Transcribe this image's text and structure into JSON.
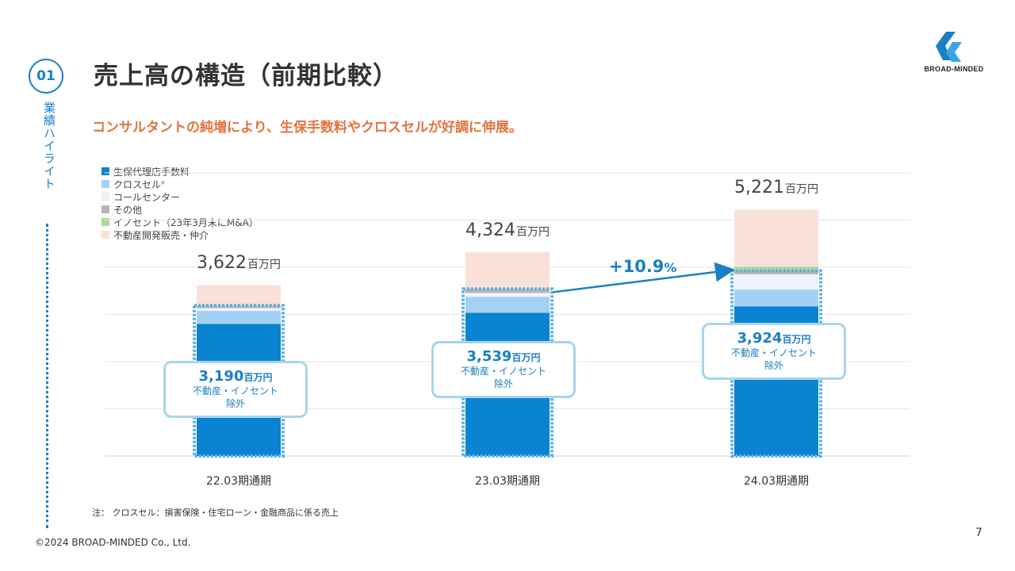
{
  "section": {
    "number": "01",
    "label": "業績ハイライト"
  },
  "title": "売上高の構造（前期比較）",
  "subtitle": "コンサルタントの純増により、生保手数料やクロスセルが好調に伸展。",
  "brand": {
    "name": "BROAD-MINDED",
    "color": "#1a7fc4"
  },
  "chart_data": {
    "type": "bar",
    "stacked": true,
    "categories": [
      "22.03期通期",
      "23.03期通期",
      "24.03期通期"
    ],
    "series": [
      {
        "name": "生保代理店手数料",
        "color": "#0a84d0",
        "values": [
          2800,
          3035,
          3172
        ]
      },
      {
        "name": "クロスセル",
        "color": "#a3d1f5",
        "values": [
          275,
          340,
          355
        ]
      },
      {
        "name": "コールセンター",
        "color": "#eef3fa",
        "values": [
          60,
          80,
          325
        ]
      },
      {
        "name": "その他",
        "color": "#b5b5b5",
        "values": [
          55,
          84,
          72
        ]
      },
      {
        "name": "イノセント（23年3月末にM&A）",
        "color": "#a8d89a",
        "values": [
          0,
          0,
          85
        ]
      },
      {
        "name": "不動産開発販売・仲介",
        "color": "#f9e1d9",
        "values": [
          432,
          785,
          1212
        ]
      }
    ],
    "totals": [
      "3,622",
      "4,324",
      "5,221"
    ],
    "total_unit": "百万円",
    "excluding_values": [
      "3,190",
      "3,539",
      "3,924"
    ],
    "excluding_raw": [
      3190,
      3539,
      3924
    ],
    "excluding_unit": "百万円",
    "excluding_label": [
      "不動産・イノセント",
      "除外"
    ],
    "growth": {
      "value": "+10.9",
      "unit": "%"
    },
    "legend_star": "*",
    "ylim": [
      0,
      6000
    ],
    "grid": true,
    "legend_position": "top-left"
  },
  "note": "注： クロスセル：損害保険・住宅ローン・金融商品に係る売上",
  "copyright": "©2024 BROAD-MINDED Co., Ltd.",
  "page_number": "7"
}
